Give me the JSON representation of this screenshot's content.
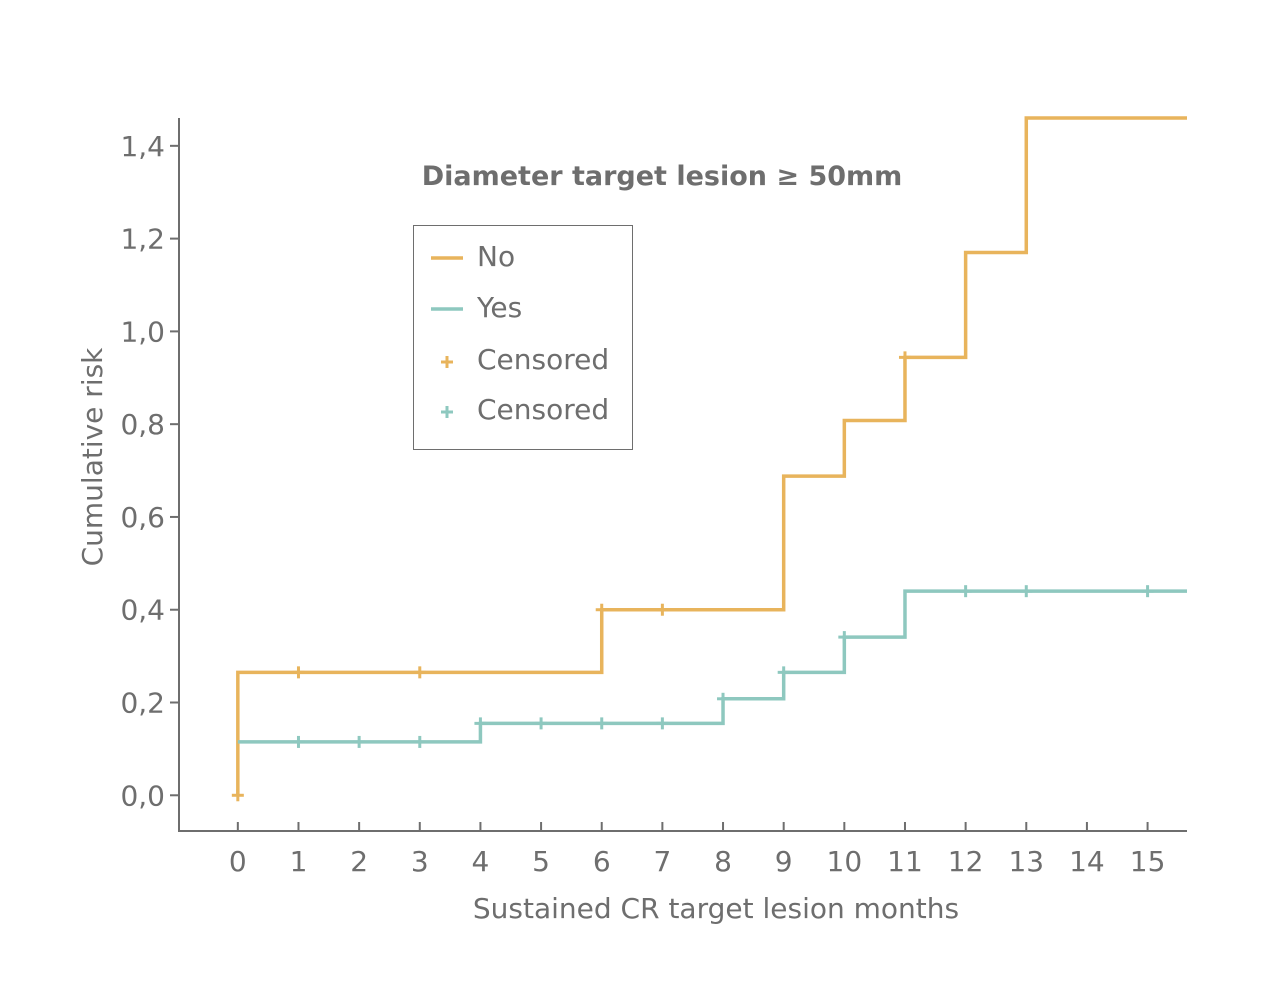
{
  "chart_data": {
    "type": "line",
    "title": "Diameter target lesion ≥ 50mm",
    "xlabel": "Sustained CR target lesion months",
    "ylabel": "Cumulative risk",
    "xlim": [
      -0.97,
      15.65
    ],
    "ylim": [
      -0.077,
      1.46
    ],
    "x_ticks": [
      0,
      1,
      2,
      3,
      4,
      5,
      6,
      7,
      8,
      9,
      10,
      11,
      12,
      13,
      14,
      15
    ],
    "x_tick_labels": [
      "0",
      "1",
      "2",
      "3",
      "4",
      "5",
      "6",
      "7",
      "8",
      "9",
      "10",
      "11",
      "12",
      "13",
      "14",
      "15"
    ],
    "y_ticks": [
      0.0,
      0.2,
      0.4,
      0.6,
      0.8,
      1.0,
      1.2,
      1.4
    ],
    "y_tick_labels": [
      "0,0",
      "0,2",
      "0,4",
      "0,6",
      "0,8",
      "1,0",
      "1,2",
      "1,4"
    ],
    "grid": false,
    "legend_position": "upper-left-inside",
    "series": [
      {
        "name": "No",
        "color": "#e8b45c",
        "step": "post",
        "x": [
          0,
          0,
          6,
          9,
          10,
          11,
          12,
          13,
          15.65
        ],
        "y": [
          0.0,
          0.265,
          0.4,
          0.688,
          0.808,
          0.944,
          1.17,
          1.46,
          1.46
        ],
        "censored_x": [
          0,
          1,
          3,
          6,
          7,
          11
        ],
        "censored_y": [
          0.0,
          0.265,
          0.265,
          0.4,
          0.4,
          0.944
        ]
      },
      {
        "name": "Yes",
        "color": "#8ec8bf",
        "step": "post",
        "x": [
          0,
          4,
          8,
          9,
          10,
          11,
          15.65
        ],
        "y": [
          0.115,
          0.155,
          0.208,
          0.265,
          0.341,
          0.44,
          0.44
        ],
        "censored_x": [
          1,
          2,
          3,
          4,
          5,
          6,
          7,
          8,
          9,
          10,
          12,
          13,
          15
        ],
        "censored_y": [
          0.115,
          0.115,
          0.115,
          0.155,
          0.155,
          0.155,
          0.155,
          0.208,
          0.265,
          0.341,
          0.44,
          0.44,
          0.44
        ]
      }
    ],
    "legend": [
      {
        "label": "No",
        "kind": "line",
        "color": "#e8b45c"
      },
      {
        "label": "Yes",
        "kind": "line",
        "color": "#8ec8bf"
      },
      {
        "label": "Censored",
        "kind": "plus",
        "color": "#e8b45c"
      },
      {
        "label": "Censored",
        "kind": "plus",
        "color": "#8ec8bf"
      }
    ]
  }
}
